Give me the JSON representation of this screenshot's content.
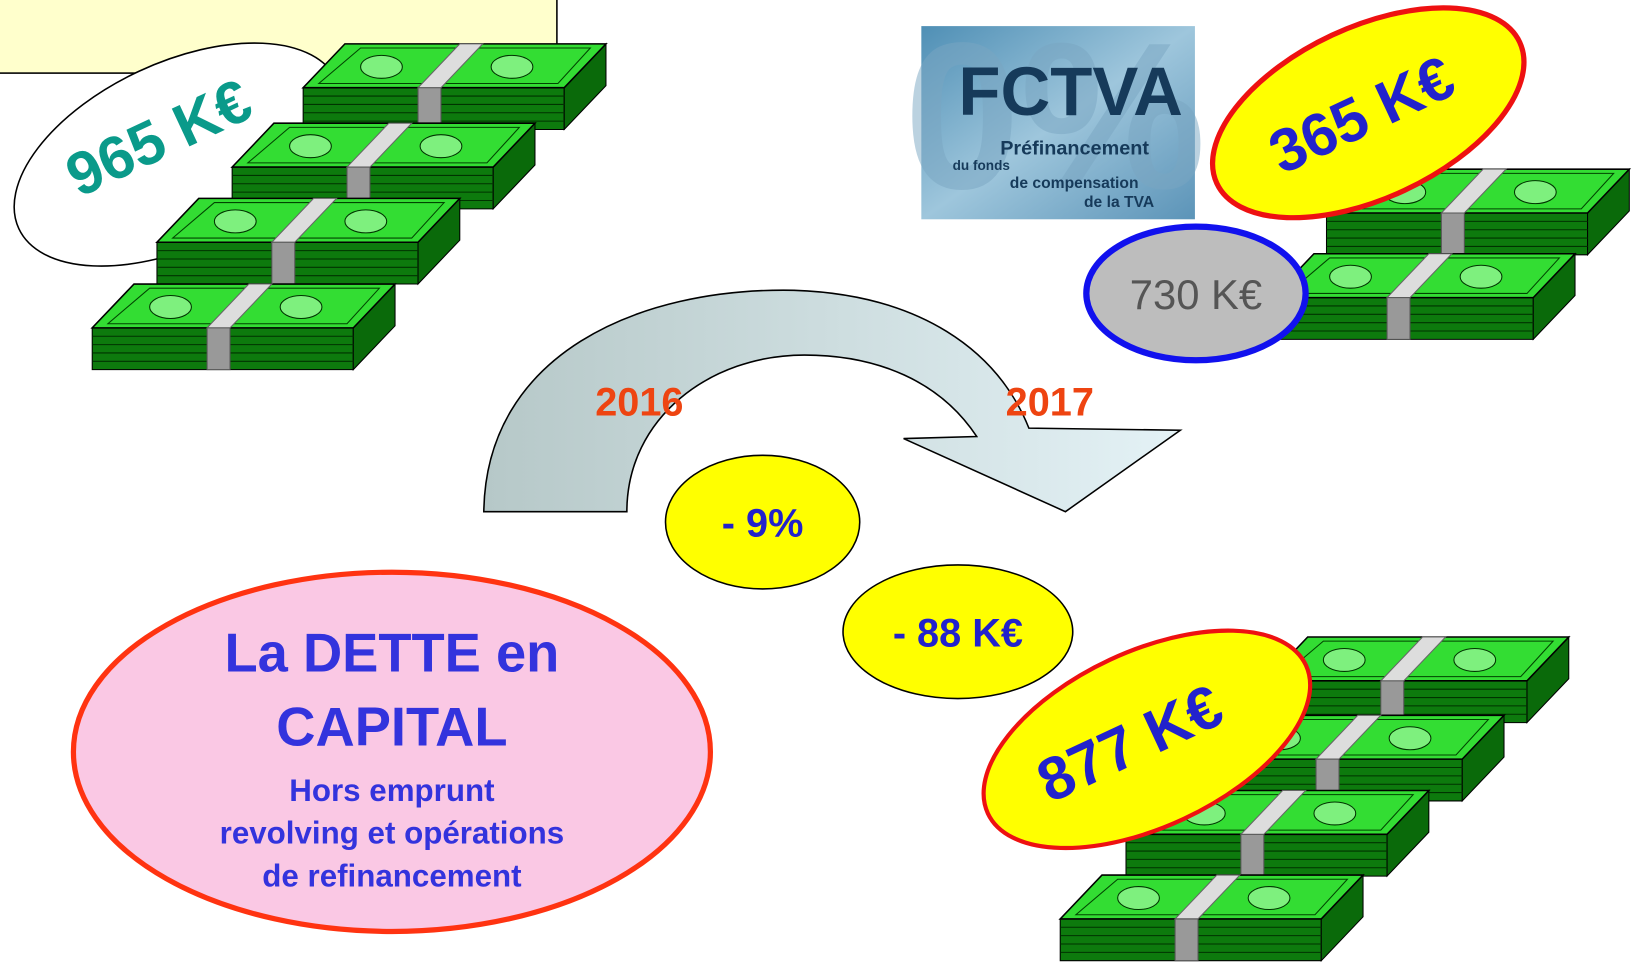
{
  "amount_2016": "965 K€",
  "fctva": {
    "logo": "FCTVA",
    "lines": [
      "Préfinancement",
      "du fonds",
      "de compensation",
      "de la TVA"
    ],
    "amount": "365 K€",
    "total": "730 K€"
  },
  "years": {
    "from": "2016",
    "to": "2017"
  },
  "change_percent": "- 9%",
  "change_amount": "- 88 K€",
  "amount_2017": "877 K€",
  "caption": {
    "title": [
      "La DETTE en",
      "CAPITAL"
    ],
    "note": [
      "Hors emprunt",
      "revolving et opérations",
      "de refinancement"
    ]
  }
}
